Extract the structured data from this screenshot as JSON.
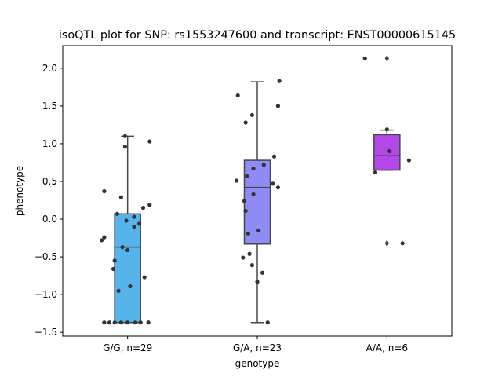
{
  "chart_data": {
    "type": "box",
    "title": "isoQTL plot for SNP: rs1553247600 and transcript: ENST00000615145",
    "xlabel": "genotype",
    "ylabel": "phenotype",
    "ylim": [
      -1.55,
      2.3
    ],
    "yticks": [
      -1.5,
      -1.0,
      -0.5,
      0.0,
      0.5,
      1.0,
      1.5,
      2.0
    ],
    "ytick_labels": [
      "−1.5",
      "−1.0",
      "−0.5",
      "0.0",
      "0.5",
      "1.0",
      "1.5",
      "2.0"
    ],
    "grid": false,
    "groups": [
      {
        "label": "G/G, n=29",
        "color": "#56b4ea",
        "box": {
          "q1": -1.37,
          "median": -0.37,
          "q3": 0.07,
          "whisker_low": -1.37,
          "whisker_high": 1.1
        },
        "outliers": [],
        "points": [
          {
            "dx": -0.02,
            "y": 1.1
          },
          {
            "dx": 0.17,
            "y": 1.03
          },
          {
            "dx": -0.02,
            "y": 0.96
          },
          {
            "dx": -0.18,
            "y": 0.37
          },
          {
            "dx": -0.05,
            "y": 0.29
          },
          {
            "dx": 0.17,
            "y": 0.19
          },
          {
            "dx": 0.12,
            "y": 0.15
          },
          {
            "dx": -0.08,
            "y": 0.07
          },
          {
            "dx": 0.05,
            "y": 0.03
          },
          {
            "dx": -0.01,
            "y": -0.02
          },
          {
            "dx": 0.09,
            "y": -0.06
          },
          {
            "dx": 0.05,
            "y": -0.1
          },
          {
            "dx": -0.18,
            "y": -0.24
          },
          {
            "dx": -0.2,
            "y": -0.28
          },
          {
            "dx": -0.04,
            "y": -0.37
          },
          {
            "dx": 0.0,
            "y": -0.41
          },
          {
            "dx": -0.1,
            "y": -0.55
          },
          {
            "dx": -0.11,
            "y": -0.66
          },
          {
            "dx": 0.13,
            "y": -0.77
          },
          {
            "dx": 0.02,
            "y": -0.89
          },
          {
            "dx": -0.07,
            "y": -0.95
          },
          {
            "dx": -0.18,
            "y": -1.37
          },
          {
            "dx": -0.1,
            "y": -1.37
          },
          {
            "dx": -0.05,
            "y": -1.37
          },
          {
            "dx": 0.0,
            "y": -1.37
          },
          {
            "dx": 0.06,
            "y": -1.37
          },
          {
            "dx": 0.1,
            "y": -1.37
          },
          {
            "dx": 0.16,
            "y": -1.37
          },
          {
            "dx": -0.14,
            "y": -1.37
          }
        ]
      },
      {
        "label": "G/A, n=23",
        "color": "#8f8cf5",
        "box": {
          "q1": -0.33,
          "median": 0.42,
          "q3": 0.78,
          "whisker_low": -1.37,
          "whisker_high": 1.82
        },
        "outliers": [],
        "points": [
          {
            "dx": 0.17,
            "y": 1.83
          },
          {
            "dx": -0.15,
            "y": 1.64
          },
          {
            "dx": 0.16,
            "y": 1.5
          },
          {
            "dx": -0.04,
            "y": 1.38
          },
          {
            "dx": -0.09,
            "y": 1.28
          },
          {
            "dx": 0.13,
            "y": 0.83
          },
          {
            "dx": 0.05,
            "y": 0.72
          },
          {
            "dx": -0.03,
            "y": 0.67
          },
          {
            "dx": -0.08,
            "y": 0.57
          },
          {
            "dx": -0.16,
            "y": 0.51
          },
          {
            "dx": 0.12,
            "y": 0.47
          },
          {
            "dx": 0.16,
            "y": 0.42
          },
          {
            "dx": -0.03,
            "y": 0.33
          },
          {
            "dx": -0.1,
            "y": 0.24
          },
          {
            "dx": -0.09,
            "y": 0.11
          },
          {
            "dx": 0.01,
            "y": -0.15
          },
          {
            "dx": -0.07,
            "y": -0.19
          },
          {
            "dx": -0.06,
            "y": -0.46
          },
          {
            "dx": -0.11,
            "y": -0.51
          },
          {
            "dx": -0.04,
            "y": -0.61
          },
          {
            "dx": 0.04,
            "y": -0.71
          },
          {
            "dx": 0.0,
            "y": -0.83
          },
          {
            "dx": 0.08,
            "y": -1.37
          }
        ]
      },
      {
        "label": "A/A, n=6",
        "color": "#b347e8",
        "box": {
          "q1": 0.65,
          "median": 0.84,
          "q3": 1.12,
          "whisker_low": 0.65,
          "whisker_high": 1.18
        },
        "outliers": [
          2.13,
          -0.32
        ],
        "points": [
          {
            "dx": -0.17,
            "y": 2.13
          },
          {
            "dx": 0.0,
            "y": 1.19
          },
          {
            "dx": 0.02,
            "y": 0.9
          },
          {
            "dx": 0.17,
            "y": 0.78
          },
          {
            "dx": -0.09,
            "y": 0.62
          },
          {
            "dx": 0.12,
            "y": -0.32
          }
        ]
      }
    ]
  }
}
